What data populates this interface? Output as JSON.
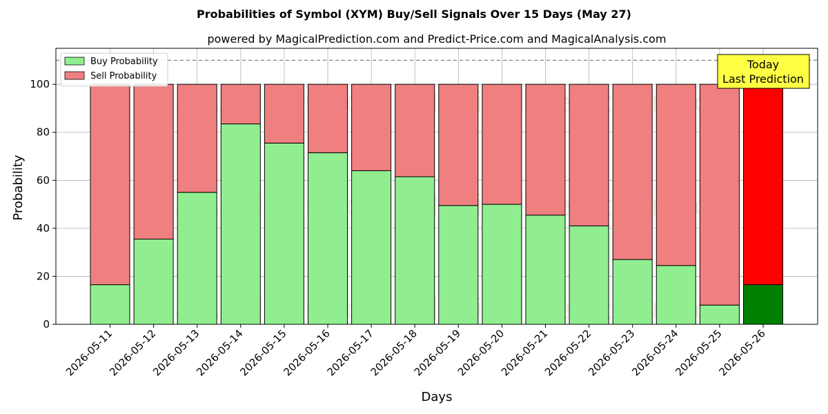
{
  "chart_data": {
    "type": "bar",
    "stacked": true,
    "title": "Probabilities of Symbol (XYM) Buy/Sell Signals Over 15 Days (May 27)",
    "subtitle": "powered by MagicalPrediction.com and Predict-Price.com and MagicalAnalysis.com",
    "xlabel": "Days",
    "ylabel": "Probability",
    "ylim": [
      0,
      115
    ],
    "yticks": [
      0,
      20,
      40,
      60,
      80,
      100
    ],
    "reference_line": 110,
    "grid": true,
    "legend_position": "top-left",
    "categories": [
      "2026-05-11",
      "2026-05-12",
      "2026-05-13",
      "2026-05-14",
      "2026-05-15",
      "2026-05-16",
      "2026-05-17",
      "2026-05-18",
      "2026-05-19",
      "2026-05-20",
      "2026-05-21",
      "2026-05-22",
      "2026-05-23",
      "2026-05-24",
      "2026-05-25",
      "2026-05-26"
    ],
    "series": [
      {
        "name": "Buy Probability",
        "color": "#90ee90",
        "values": [
          16.5,
          35.5,
          55,
          83.5,
          75.5,
          71.5,
          64,
          61.5,
          49.5,
          50,
          45.5,
          41,
          27,
          24.5,
          8,
          16.5
        ]
      },
      {
        "name": "Sell Probability",
        "color": "#f08080",
        "values": [
          83.5,
          64.5,
          45,
          16.5,
          24.5,
          28.5,
          36,
          38.5,
          50.5,
          50,
          54.5,
          59,
          73,
          75.5,
          92,
          83.5
        ]
      }
    ],
    "highlight": {
      "index": 15,
      "buy_color": "#008000",
      "sell_color": "#ff0000"
    },
    "annotation": {
      "line1": "Today",
      "line2": "Last Prediction",
      "color": "#ffff44"
    },
    "watermarks": [
      "MagicalAnalysis.com",
      "MagicalPrediction.com"
    ]
  }
}
